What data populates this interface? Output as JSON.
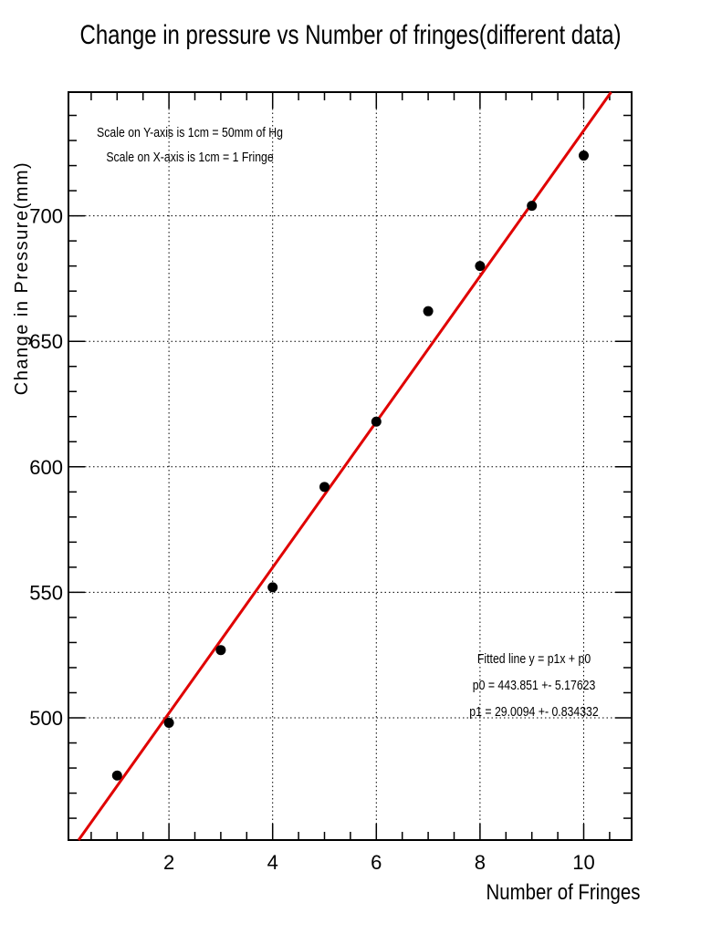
{
  "chart_data": {
    "type": "scatter",
    "title": "Change in pressure vs Number of fringes(different data)",
    "xlabel": "Number of Fringes",
    "ylabel": "Change in Pressure(mm)",
    "xlim": [
      0,
      11
    ],
    "ylim": [
      450,
      750
    ],
    "x_ticks": [
      2,
      4,
      6,
      8,
      10
    ],
    "y_ticks": [
      500,
      550,
      600,
      650,
      700
    ],
    "grid": true,
    "scale_notes": [
      "Scale on Y-axis is 1cm = 50mm of Hg",
      "Scale on X-axis is 1cm = 1 Fringe"
    ],
    "fit_notes": [
      "Fitted line y = p1x + p0",
      "p0 = 443.851 +- 5.17623",
      "p1 = 29.0094 +- 0.834332"
    ],
    "series": [
      {
        "x": [
          1,
          2,
          3,
          4,
          5,
          6,
          7,
          8,
          9,
          10
        ],
        "y": [
          477,
          498,
          527,
          552,
          592,
          618,
          662,
          680,
          704,
          724
        ],
        "color": "#000000"
      }
    ],
    "fit": {
      "p0": 443.851,
      "p1": 29.0094,
      "color": "#e00000"
    }
  }
}
